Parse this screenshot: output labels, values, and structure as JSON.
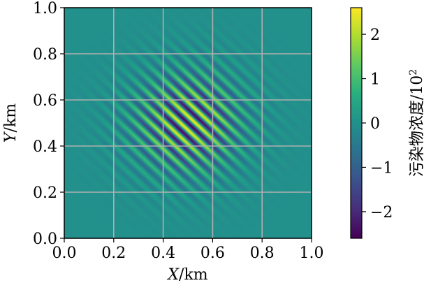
{
  "chart_data": {
    "type": "heatmap",
    "title": "",
    "xlabel": {
      "var": "X",
      "unit": "/km"
    },
    "ylabel": {
      "var": "Y",
      "unit": "/km"
    },
    "xlim": [
      0.0,
      1.0
    ],
    "ylim": [
      0.0,
      1.0
    ],
    "xticks": [
      "0.0",
      "0.2",
      "0.4",
      "0.6",
      "0.8",
      "1.0"
    ],
    "yticks": [
      "0.0",
      "0.2",
      "0.4",
      "0.6",
      "0.8",
      "1.0"
    ],
    "grid": true,
    "colormap": "viridis",
    "colorbar": {
      "label_text": "污染物浓度/10",
      "label_exponent": "2",
      "range": [
        -2.6,
        2.6
      ],
      "ticks": [
        2,
        1,
        0,
        -1,
        -2
      ],
      "tick_labels": [
        "2",
        "1",
        "0",
        "−1",
        "−2"
      ]
    },
    "field": {
      "description_values": "oscillating diagonal stripe pattern under a Gaussian envelope",
      "center": [
        0.5,
        0.5
      ],
      "envelope_sigma": 0.16,
      "peak_amplitude": 2.5,
      "stripe_direction": [
        1,
        1
      ],
      "stripe_wavenumber_per_km": 33
    }
  },
  "colors": {
    "grid": "#b0b0b0",
    "axis": "#000000",
    "background": "#ffffff"
  }
}
